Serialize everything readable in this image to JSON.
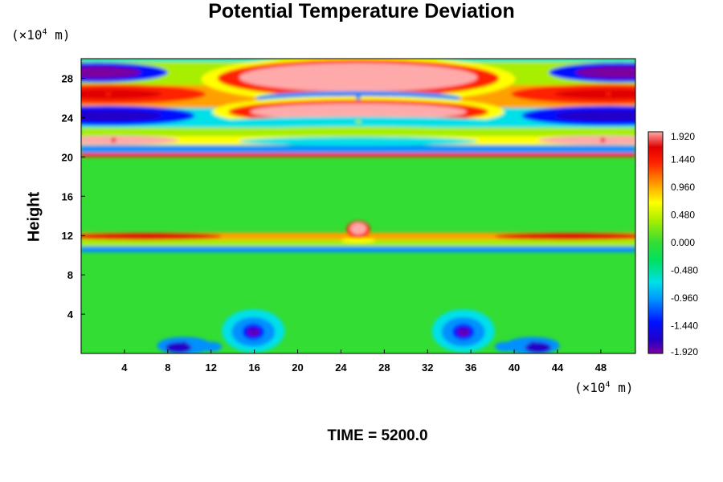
{
  "chart_data": {
    "type": "heatmap",
    "title": "Potential Temperature Deviation",
    "ylabel": "Height",
    "x_unit_prefix": "(×10",
    "x_unit_exp": "4",
    "x_unit_suffix": " m)",
    "y_unit_prefix": "(×10",
    "y_unit_exp": "4",
    "y_unit_suffix": " m)",
    "xlim": [
      0,
      51.2
    ],
    "ylim": [
      0,
      30
    ],
    "x_ticks": [
      "4",
      "8",
      "12",
      "16",
      "20",
      "24",
      "28",
      "32",
      "36",
      "40",
      "44",
      "48"
    ],
    "y_ticks": [
      "4",
      "8",
      "12",
      "16",
      "20",
      "24",
      "28"
    ],
    "colorbar": {
      "min": -1.92,
      "max": 1.92,
      "labels": [
        "1.920",
        "1.440",
        "0.960",
        "0.480",
        "0.000",
        "-0.480",
        "-0.960",
        "-1.440",
        "-1.920"
      ]
    },
    "features": [
      {
        "x": 25.6,
        "y": 27.9,
        "value": 1.92
      },
      {
        "x": 25.6,
        "y": 24.6,
        "value": 1.92
      },
      {
        "x": 25.6,
        "y": 23.6,
        "value": 0.6
      },
      {
        "x": 25.6,
        "y": 26.0,
        "value": -0.9
      },
      {
        "x": 1.5,
        "y": 28.6,
        "value": -1.92
      },
      {
        "x": 49.7,
        "y": 28.6,
        "value": -1.92
      },
      {
        "x": 2.5,
        "y": 24.2,
        "value": -1.5
      },
      {
        "x": 48.7,
        "y": 24.2,
        "value": -1.5
      },
      {
        "x": 2.5,
        "y": 26.4,
        "value": 1.4
      },
      {
        "x": 48.7,
        "y": 26.4,
        "value": 1.4
      },
      {
        "x": 3.0,
        "y": 21.7,
        "value": 1.7
      },
      {
        "x": 48.2,
        "y": 21.7,
        "value": 1.7
      },
      {
        "x": 25.6,
        "y": 12.6,
        "value": 1.92
      },
      {
        "x": 15.9,
        "y": 2.3,
        "value": -1.6
      },
      {
        "x": 35.3,
        "y": 2.3,
        "value": -1.6
      },
      {
        "x": 9.5,
        "y": 1.0,
        "value": -1.5
      },
      {
        "x": 41.7,
        "y": 1.0,
        "value": -1.5
      }
    ]
  },
  "time_label": "TIME = 5200.0"
}
